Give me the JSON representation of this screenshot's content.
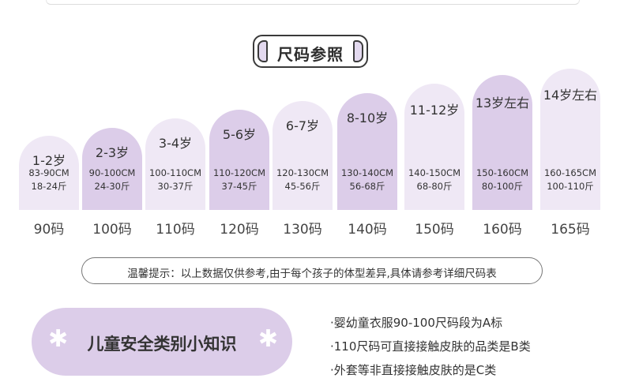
{
  "title": "尺码参照",
  "sizes": [
    {
      "age": "1-2岁",
      "cm": "83-90CM",
      "jin": "18-24斤",
      "code": "90码"
    },
    {
      "age": "2-3岁",
      "cm": "90-100CM",
      "jin": "24-30斤",
      "code": "100码"
    },
    {
      "age": "3-4岁",
      "cm": "100-110CM",
      "jin": "30-37斤",
      "code": "110码"
    },
    {
      "age": "5-6岁",
      "cm": "110-120CM",
      "jin": "37-45斤",
      "code": "120码"
    },
    {
      "age": "6-7岁",
      "cm": "120-130CM",
      "jin": "45-56斤",
      "code": "130码"
    },
    {
      "age": "8-10岁",
      "cm": "130-140CM",
      "jin": "56-68斤",
      "code": "140码"
    },
    {
      "age": "11-12岁",
      "cm": "140-150CM",
      "jin": "68-80斤",
      "code": "150码"
    },
    {
      "age": "13岁左右",
      "cm": "150-160CM",
      "jin": "80-100斤",
      "code": "160码"
    },
    {
      "age": "14岁左右",
      "cm": "160-165CM",
      "jin": "100-110斤",
      "code": "165码"
    }
  ],
  "tip": "温馨提示：以上数据仅供参考,由于每个孩子的体型差异,具体请参考详细尺码表",
  "knowledge": {
    "label": "儿童安全类别小知识",
    "star": "✱",
    "facts": [
      "·婴幼童衣服90-100尺码段为A标",
      "·110尺码可直接接触皮肤的品类是B类",
      "·外套等非直接接触皮肤的是C类"
    ]
  },
  "colors": {
    "light": "#efe8f5",
    "dark": "#dccde9"
  }
}
